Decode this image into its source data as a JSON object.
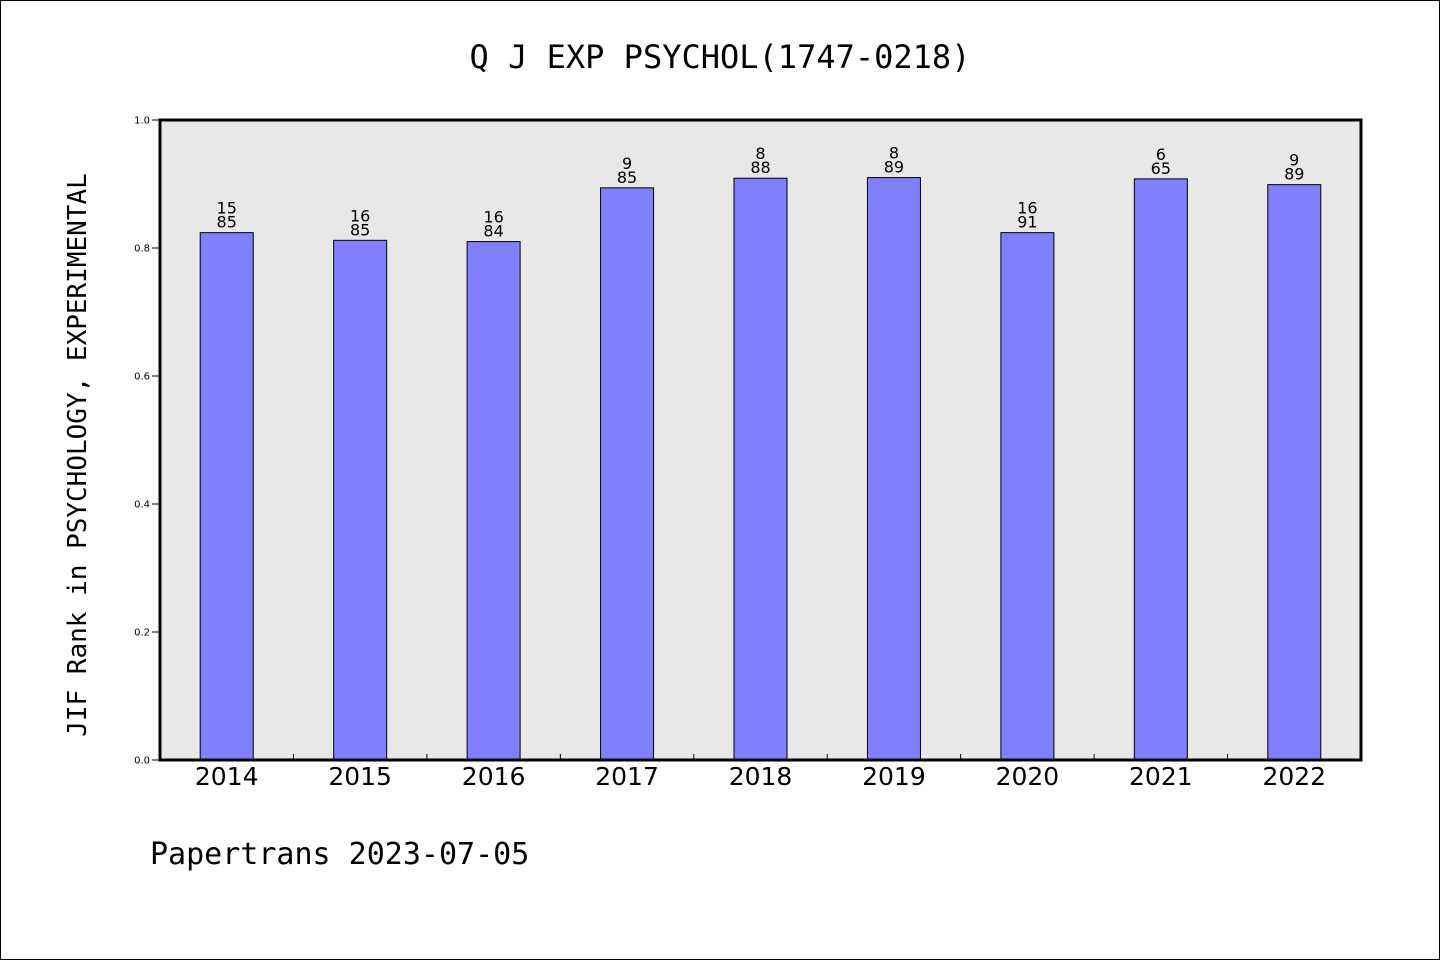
{
  "chart_data": {
    "type": "bar",
    "title": "Q J EXP PSYCHOL(1747-0218)",
    "ylabel": "JIF Rank in PSYCHOLOGY, EXPERIMENTAL",
    "xlabel": "",
    "ylim": [
      0,
      1.0
    ],
    "yticks": [
      "0.0",
      "0.2",
      "0.4",
      "0.6",
      "0.8",
      "1.0"
    ],
    "categories": [
      "2014",
      "2015",
      "2016",
      "2017",
      "2018",
      "2019",
      "2020",
      "2021",
      "2022"
    ],
    "values": [
      0.824,
      0.812,
      0.81,
      0.894,
      0.909,
      0.91,
      0.824,
      0.908,
      0.899
    ],
    "rank": [
      "15",
      "16",
      "16",
      "9",
      "8",
      "8",
      "16",
      "6",
      "9"
    ],
    "total": [
      "85",
      "85",
      "84",
      "85",
      "88",
      "89",
      "91",
      "65",
      "89"
    ],
    "bar_color": "#8080ff",
    "plot_background": "#e8e8e8",
    "grid": false
  },
  "footer": {
    "text": "Papertrans 2023-07-05"
  }
}
